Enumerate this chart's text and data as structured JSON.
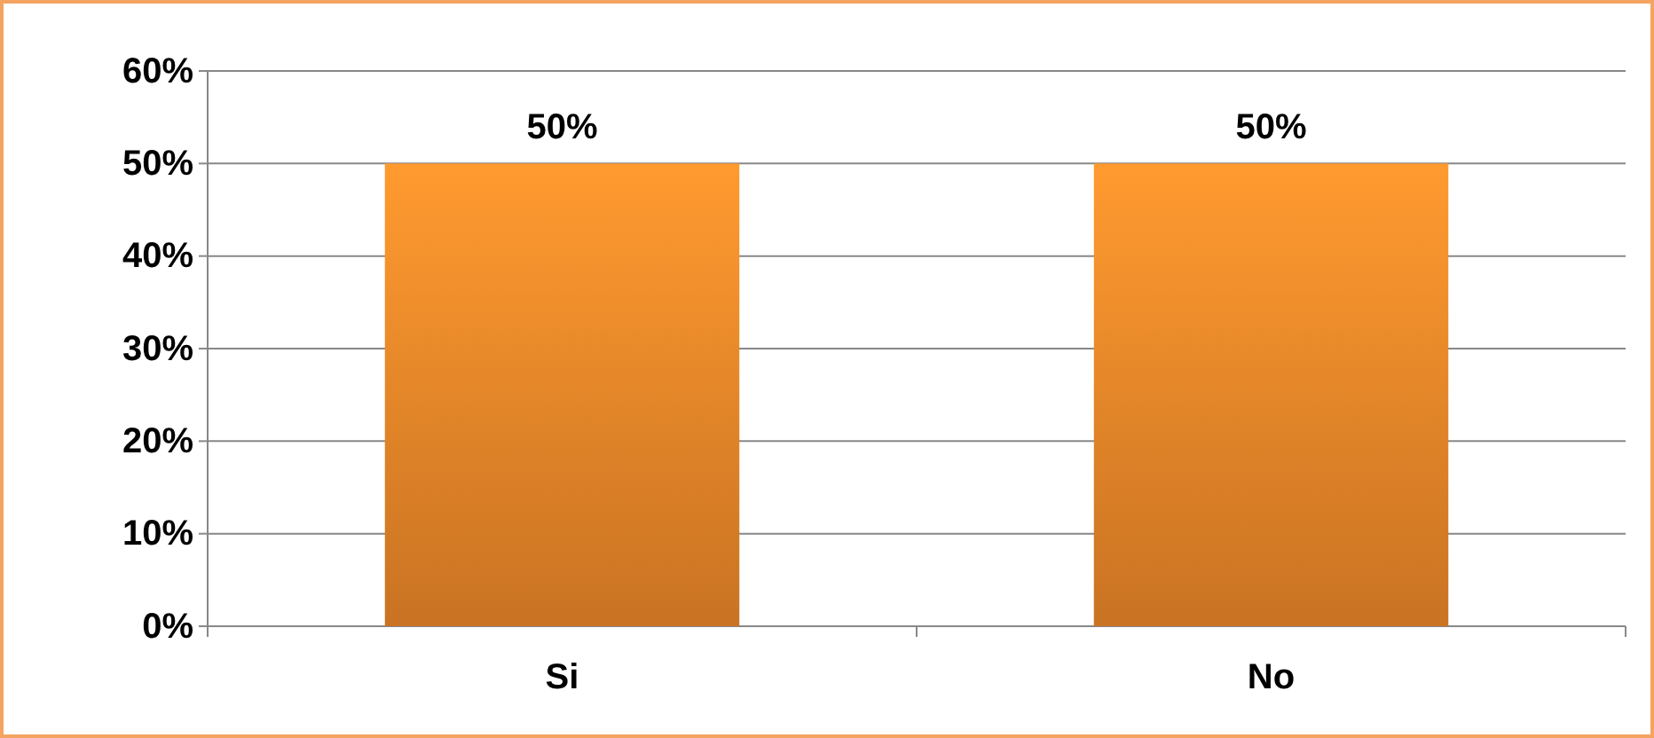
{
  "chart_data": {
    "type": "bar",
    "categories": [
      "Si",
      "No"
    ],
    "values": [
      50,
      50
    ],
    "color": "#f08a2a",
    "value_labels": [
      "50%",
      "50%"
    ],
    "ylim": [
      0,
      60
    ],
    "yticks": [
      {
        "value": 0,
        "label": "0%"
      },
      {
        "value": 10,
        "label": "10%"
      },
      {
        "value": 20,
        "label": "20%"
      },
      {
        "value": 30,
        "label": "30%"
      },
      {
        "value": 40,
        "label": "40%"
      },
      {
        "value": 50,
        "label": "50%"
      },
      {
        "value": 60,
        "label": "60%"
      }
    ],
    "grid": "y"
  }
}
